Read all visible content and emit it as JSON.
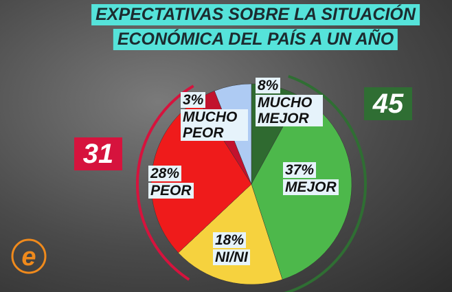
{
  "chart_data": {
    "type": "pie",
    "title_lines": [
      "EXPECTATIVAS SOBRE LA SITUACIÓN",
      "ECONÓMICA DEL PAÍS A UN AÑO"
    ],
    "categories": [
      "MUCHO MEJOR",
      "MEJOR",
      "NI/NI",
      "PEOR",
      "MUCHO PEOR",
      null
    ],
    "values": [
      8,
      37,
      18,
      28,
      3,
      6
    ],
    "value_labels": [
      "8%",
      "37%",
      "18%",
      "28%",
      "3%",
      null
    ],
    "colors": [
      "#2f6a30",
      "#4db84b",
      "#f6d23e",
      "#ef1b1b",
      "#c2122e",
      "#aecbf3"
    ],
    "totals": [
      {
        "value": 31,
        "color": "#d6133d"
      },
      {
        "value": 45,
        "color": "#2f6e33"
      }
    ]
  }
}
